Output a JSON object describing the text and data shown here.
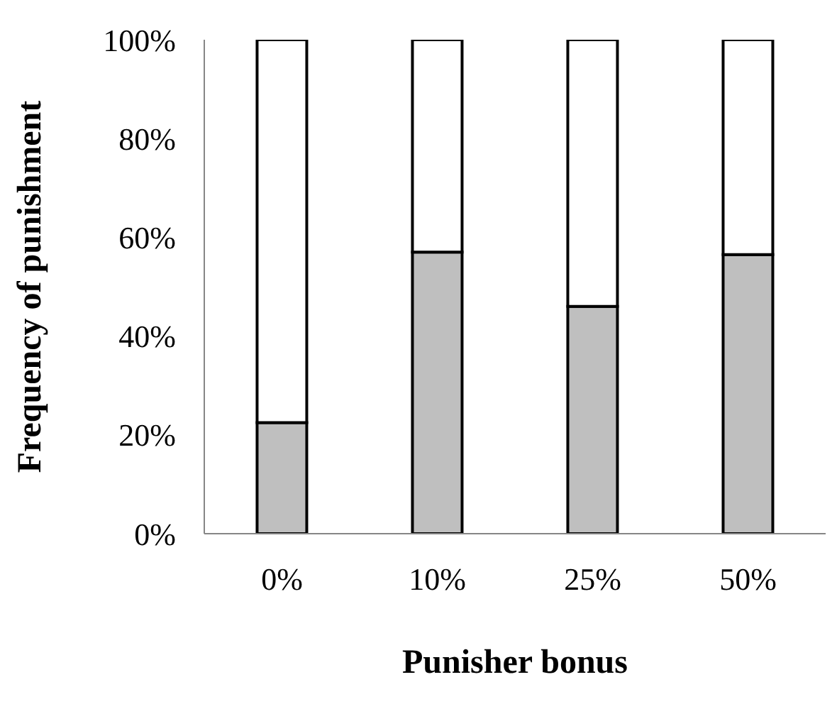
{
  "chart_data": {
    "type": "bar",
    "stacked": true,
    "xlabel": "Punisher bonus",
    "ylabel": "Frequency of punishment",
    "categories": [
      "0%",
      "10%",
      "25%",
      "50%"
    ],
    "series": [
      {
        "color": "#bfbfbf",
        "values": [
          22.5,
          57,
          46,
          56.5
        ]
      },
      {
        "color": "#ffffff",
        "values": [
          77.5,
          43,
          54,
          43.5
        ]
      }
    ],
    "ylim": [
      0,
      100
    ],
    "yticks": [
      {
        "value": 0,
        "label": "0%"
      },
      {
        "value": 20,
        "label": "20%"
      },
      {
        "value": 40,
        "label": "40%"
      },
      {
        "value": 60,
        "label": "60%"
      },
      {
        "value": 80,
        "label": "80%"
      },
      {
        "value": 100,
        "label": "100%"
      }
    ],
    "grid": false,
    "legend": false
  }
}
